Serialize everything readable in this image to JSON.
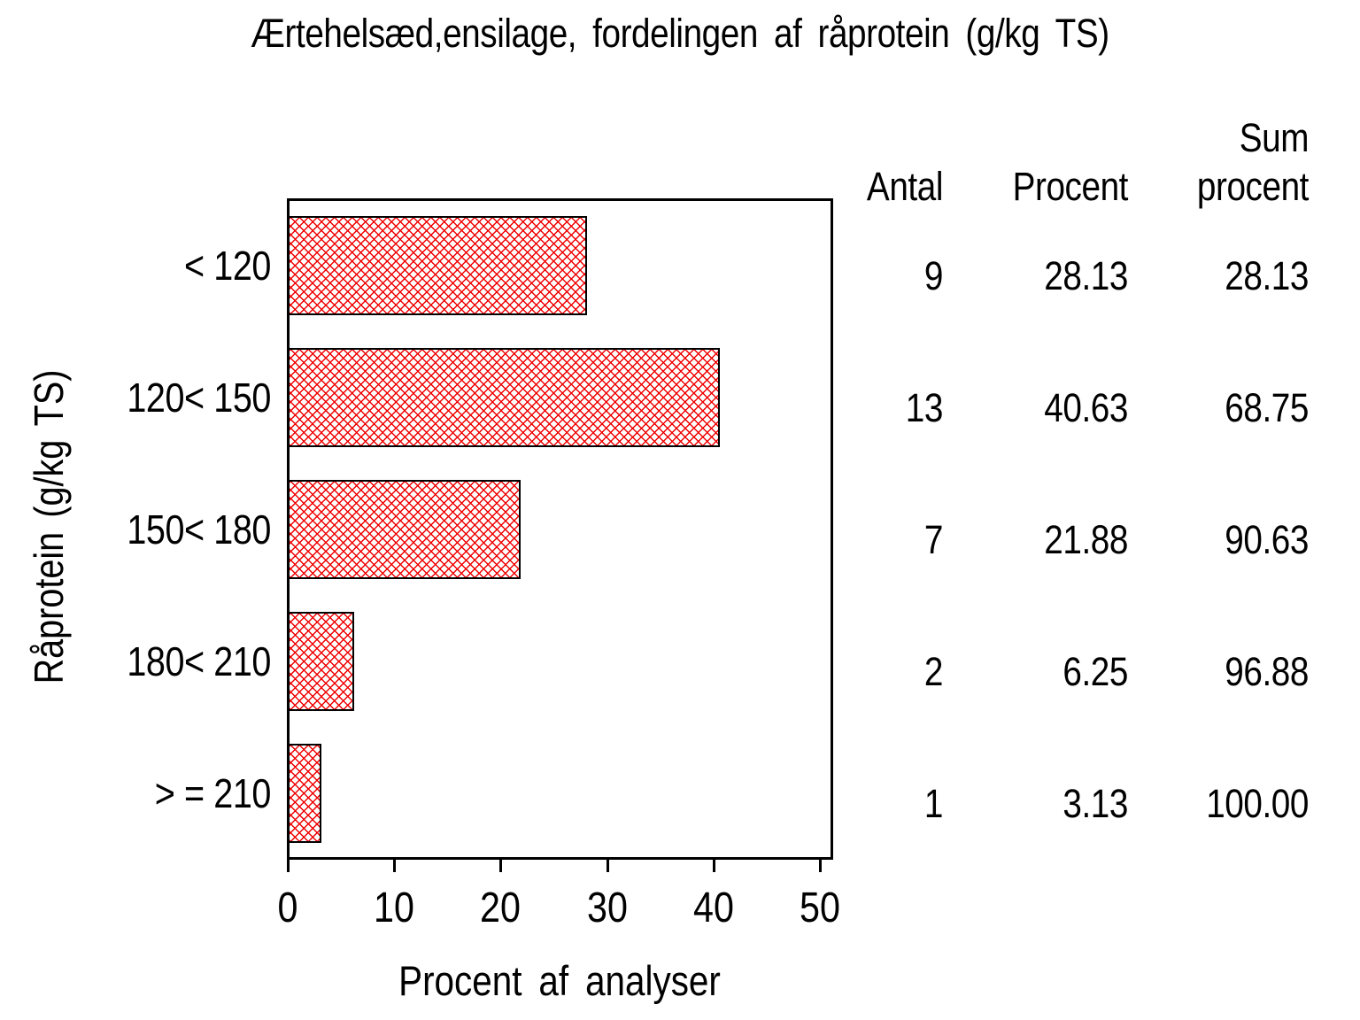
{
  "title": "Ærtehelsæd,ensilage, fordelingen af råprotein (g/kg TS)",
  "chart_data": {
    "type": "bar",
    "orientation": "horizontal",
    "title": "Ærtehelsæd,ensilage, fordelingen af råprotein (g/kg TS)",
    "xlabel": "Procent af analyser",
    "ylabel": "Råprotein (g/kg TS)",
    "xlim": [
      0,
      50
    ],
    "xticks": [
      "0",
      "10",
      "20",
      "30",
      "40",
      "50"
    ],
    "grid": false,
    "legend": "none",
    "categories": [
      "< 120",
      "120< 150",
      "150< 180",
      "180< 210",
      "> = 210"
    ],
    "values": [
      28.13,
      40.63,
      21.88,
      6.25,
      3.13
    ],
    "bar_pattern": "red-crosshatch",
    "bar_color": "#f00000",
    "bar_border_color": "#000000",
    "table": {
      "headers": {
        "antal": "Antal",
        "procent": "Procent",
        "sum_line1": "Sum",
        "sum_line2": "procent"
      },
      "rows": [
        [
          "9",
          "28.13",
          "28.13"
        ],
        [
          "13",
          "40.63",
          "68.75"
        ],
        [
          "7",
          "21.88",
          "90.63"
        ],
        [
          "2",
          "6.25",
          "96.88"
        ],
        [
          "1",
          "3.13",
          "100.00"
        ]
      ]
    }
  }
}
